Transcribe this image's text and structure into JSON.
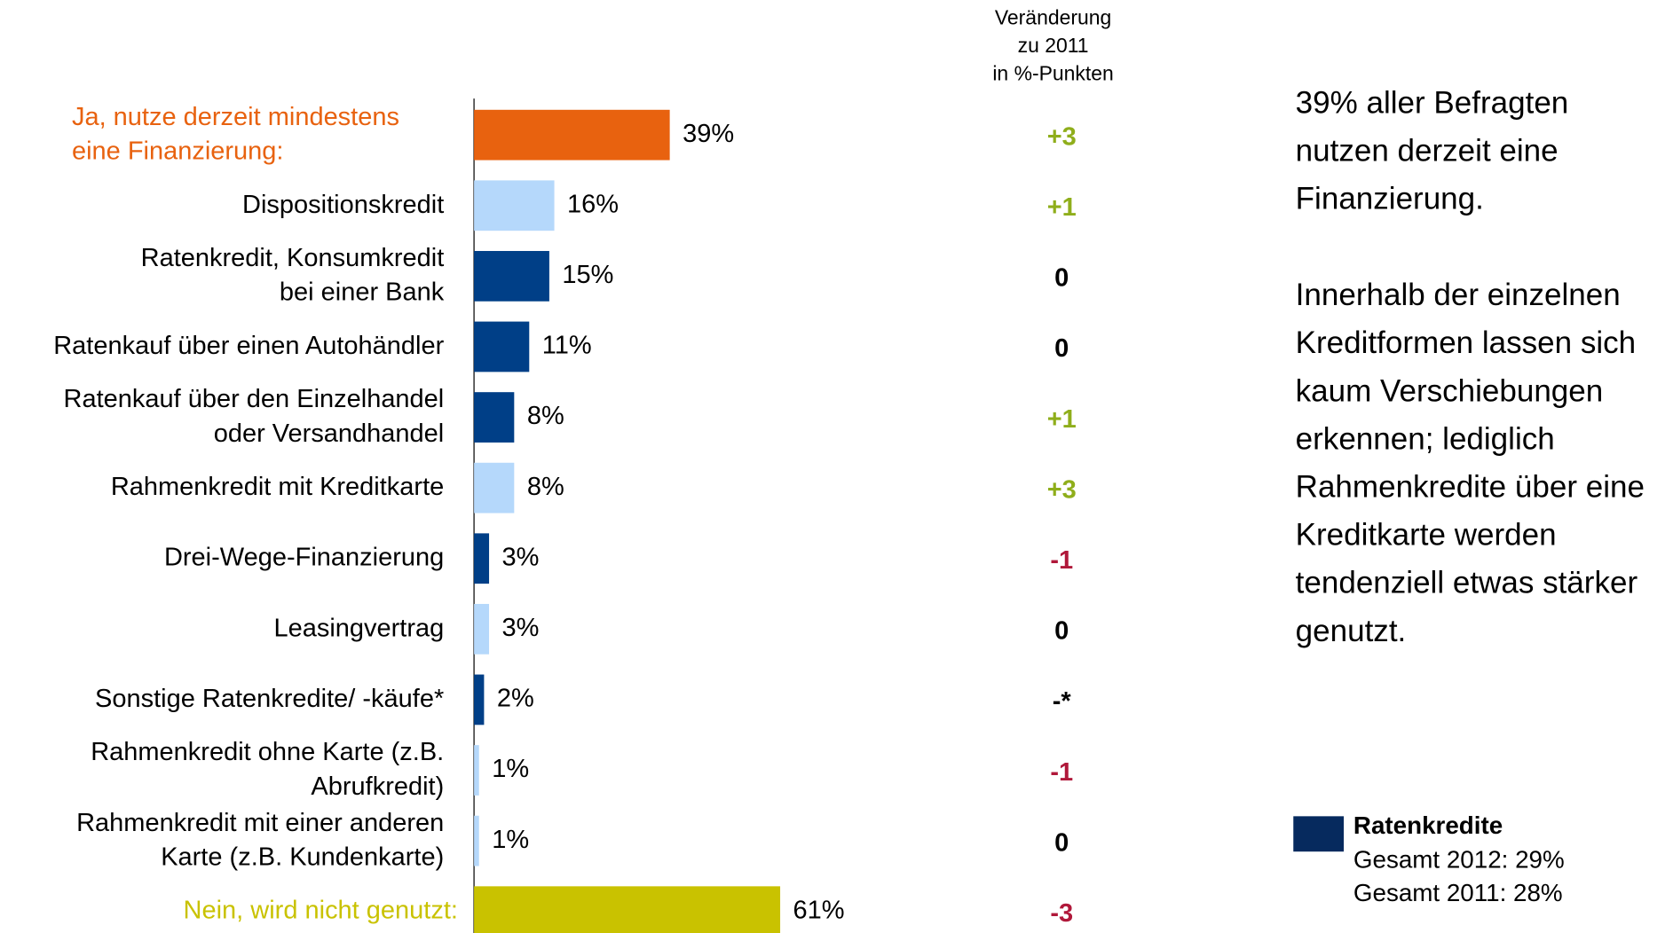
{
  "chart_data": {
    "type": "bar",
    "orientation": "horizontal",
    "categories": [
      "Ja, nutze derzeit mindestens\neine Finanzierung:",
      "Dispositionskredit",
      "Ratenkredit, Konsumkredit\nbei einer Bank",
      "Ratenkauf über einen Autohändler",
      "Ratenkauf über den Einzelhandel\noder Versandhandel",
      "Rahmenkredit mit Kreditkarte",
      "Drei-Wege-Finanzierung",
      "Leasingvertrag",
      "Sonstige Ratenkredite/ -käufe*",
      "Rahmenkredit ohne Karte (z.B.\nAbrufkredit)",
      "Rahmenkredit mit einer anderen\nKarte (z.B. Kundenkarte)",
      "Nein, wird nicht genutzt:"
    ],
    "values": [
      39,
      16,
      15,
      11,
      8,
      8,
      3,
      3,
      2,
      1,
      1,
      61
    ],
    "value_labels": [
      "39%",
      "16%",
      "15%",
      "11%",
      "8%",
      "8%",
      "3%",
      "3%",
      "2%",
      "1%",
      "1%",
      "61%"
    ],
    "colors": [
      "#e8620f",
      "#b5d8fb",
      "#003f87",
      "#003f87",
      "#003f87",
      "#b5d8fb",
      "#003f87",
      "#b5d8fb",
      "#003f87",
      "#b5d8fb",
      "#b5d8fb",
      "#c9c200"
    ],
    "label_colors": [
      "#e8620f",
      "#000000",
      "#000000",
      "#000000",
      "#000000",
      "#000000",
      "#000000",
      "#000000",
      "#000000",
      "#000000",
      "#000000",
      "#c9c200"
    ],
    "changes": {
      "title": "Veränderung\nzu 2011\nin %-Punkten",
      "values": [
        3,
        1,
        0,
        0,
        1,
        3,
        -1,
        0,
        null,
        -1,
        0,
        -3
      ],
      "labels": [
        "+3",
        "+1",
        "0",
        "0",
        "+1",
        "+3",
        "-1",
        "0",
        "-*",
        "-1",
        "0",
        "-3"
      ]
    },
    "commentary": [
      "39% aller Befragten\nnutzen derzeit eine\nFinanzierung.",
      "Innerhalb der einzelnen\nKreditformen lassen sich\nkaum Verschiebungen\nerkennen; lediglich\nRahmenkredite über eine\nKreditkarte werden\ntendenziell etwas stärker\ngenutzt."
    ],
    "legend": {
      "name": "Ratenkredite",
      "color": "#062a5e",
      "lines": [
        "Gesamt 2012: 29%",
        "Gesamt 2011: 28%"
      ]
    }
  }
}
